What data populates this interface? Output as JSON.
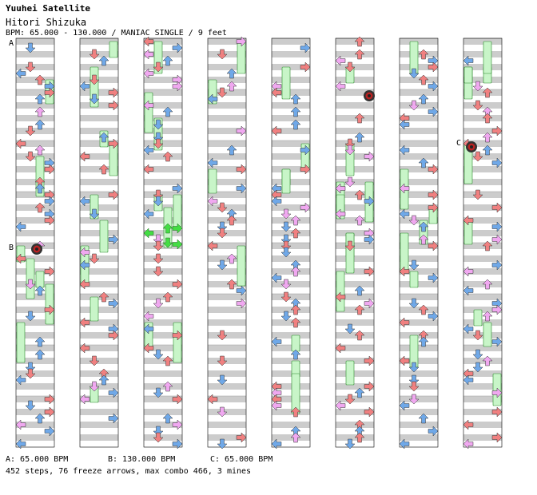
{
  "song": {
    "title": "Yuuhei Satellite",
    "artist": "Hitori Shizuka",
    "info": "BPM: 65.000 - 130.000 / MANIAC SINGLE / 9 feet"
  },
  "footer": {
    "bpm_a": "A: 65.000 BPM",
    "bpm_b": "B: 130.000 BPM",
    "bpm_c": "C: 65.000 BPM",
    "stats": "452 steps, 76 freeze arrows, max combo 466, 3 mines"
  },
  "markers": [
    {
      "label": "A",
      "column": 0,
      "measure": 0
    },
    {
      "label": "B",
      "column": 0,
      "measure": 4
    },
    {
      "label": "C",
      "column": 7,
      "measure": 2
    }
  ],
  "chart_data": {
    "type": "step-chart",
    "lanes": [
      "left",
      "down",
      "up",
      "right"
    ],
    "columns": 8,
    "measures_per_column": 8,
    "colors": {
      "quarter": "#f08080",
      "eighth": "#6fa8e8",
      "sixteenth": "#f0a8f0",
      "freeze": "#c8f5c8",
      "freeze_active": "#44dd44",
      "mine": "#333333",
      "stripe": "#cccccc"
    },
    "mines": [
      {
        "column": 0,
        "measure": 4
      },
      {
        "column": 5,
        "measure": 1
      },
      {
        "column": 7,
        "measure": 2
      }
    ]
  }
}
